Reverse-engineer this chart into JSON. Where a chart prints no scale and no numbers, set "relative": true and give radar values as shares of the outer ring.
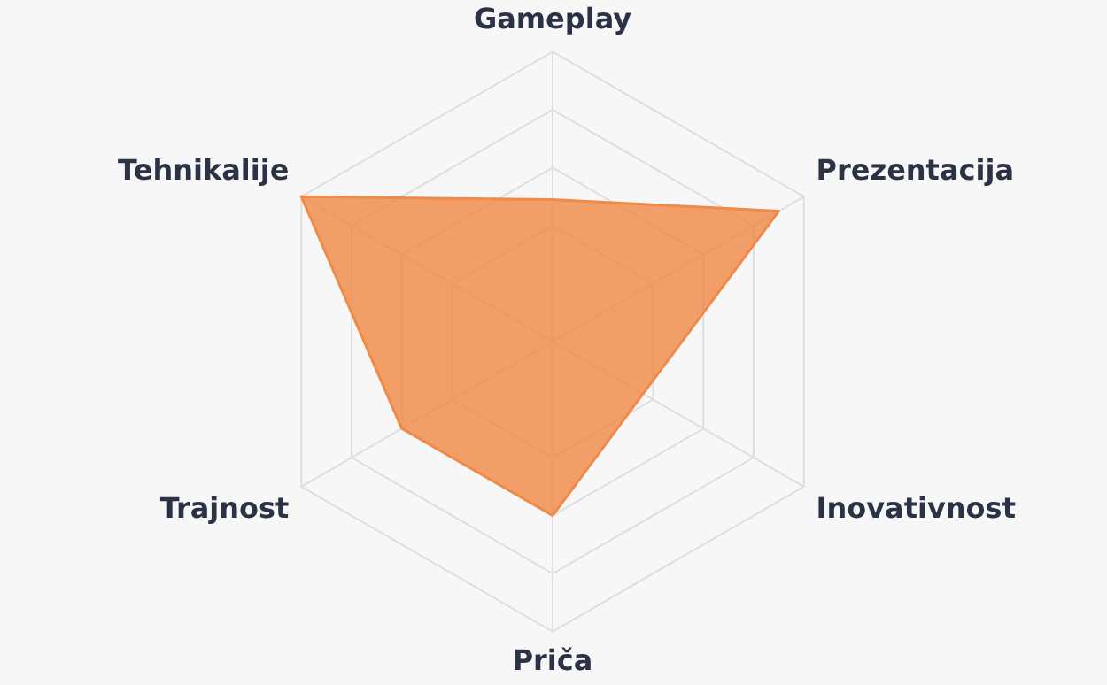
{
  "chart_data": {
    "type": "radar",
    "relative": true,
    "categories": [
      "Gameplay",
      "Prezentacija",
      "Inovativnost",
      "Priča",
      "Trajnost",
      "Tehnikalije"
    ],
    "series": [
      {
        "color": "#f08a48",
        "values": [
          0.49,
          0.9,
          0.36,
          0.6,
          0.6,
          1.0
        ]
      }
    ],
    "grid": true,
    "legend": false,
    "marker": "none"
  }
}
